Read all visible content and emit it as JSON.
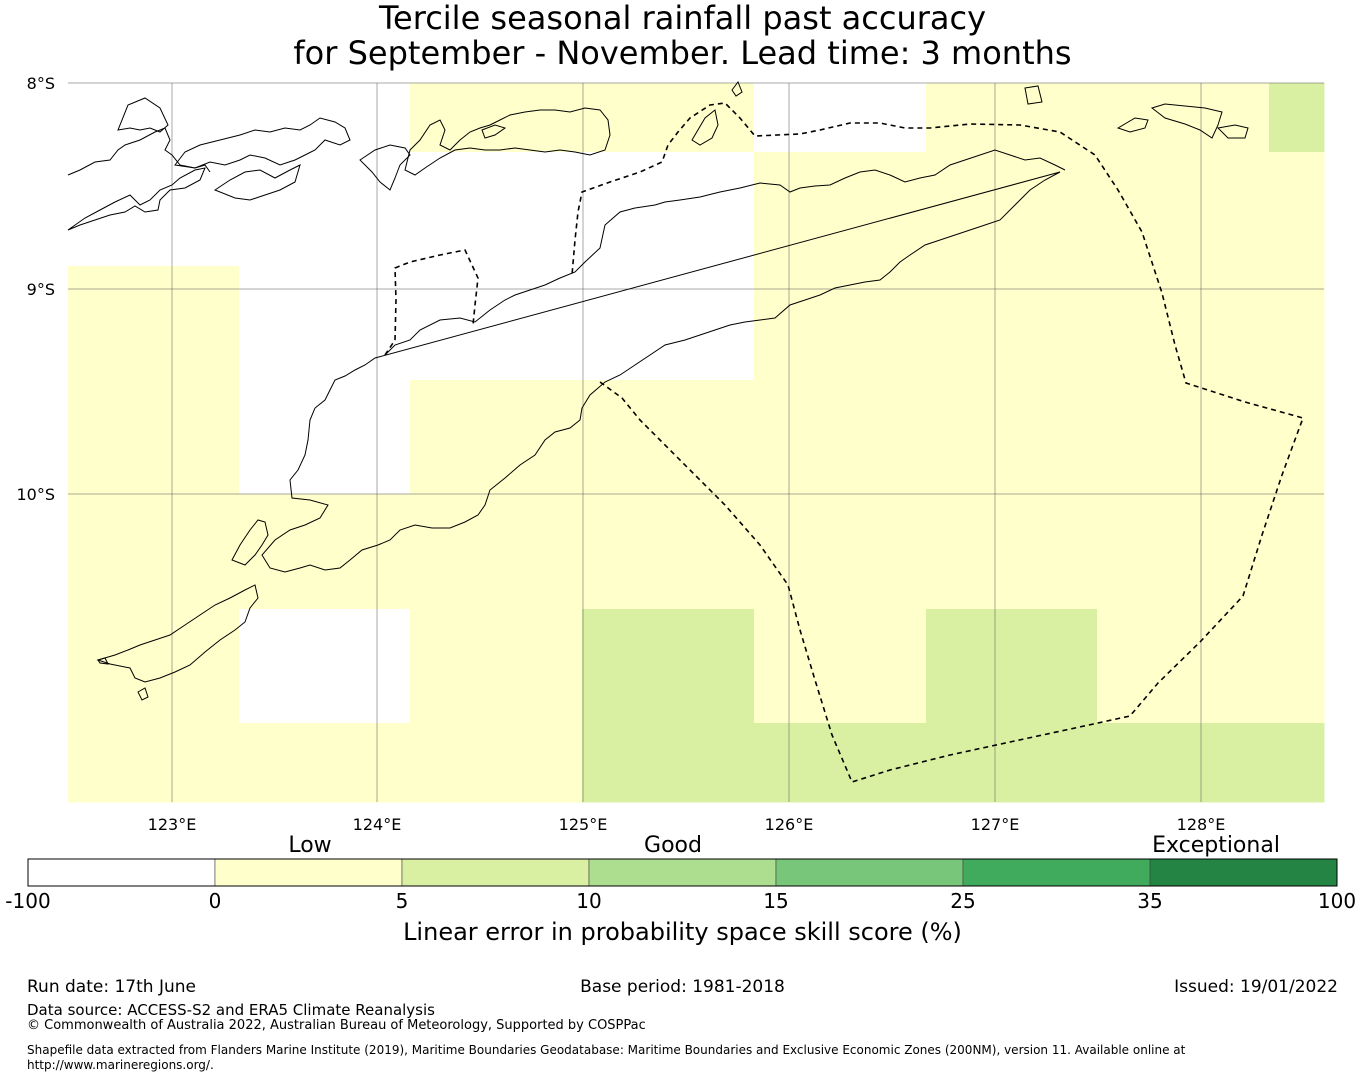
{
  "title": {
    "line1": "Tercile seasonal rainfall past accuracy",
    "line2": "for September - November. Lead time: 3 months"
  },
  "map": {
    "lat_labels": [
      "8°S",
      "9°S",
      "10°S"
    ],
    "lon_labels": [
      "123°E",
      "124°E",
      "125°E",
      "126°E",
      "127°E",
      "128°E"
    ],
    "colors": {
      "white": "#ffffff",
      "low": "#ffffcc",
      "good": "#d9f0a3"
    },
    "grid_cells": [
      {
        "row": 0,
        "col": 0,
        "cat": "white"
      },
      {
        "row": 0,
        "col": 1,
        "cat": "white"
      },
      {
        "row": 0,
        "col": 2,
        "cat": "low"
      },
      {
        "row": 0,
        "col": 3,
        "cat": "low"
      },
      {
        "row": 0,
        "col": 4,
        "cat": "white"
      },
      {
        "row": 0,
        "col": 5,
        "cat": "low"
      },
      {
        "row": 0,
        "col": 6,
        "cat": "low"
      },
      {
        "row": 0,
        "col": 7,
        "cat": "good"
      },
      {
        "row": 1,
        "col": 0,
        "cat": "white"
      },
      {
        "row": 1,
        "col": 1,
        "cat": "white"
      },
      {
        "row": 1,
        "col": 2,
        "cat": "white"
      },
      {
        "row": 1,
        "col": 3,
        "cat": "white"
      },
      {
        "row": 1,
        "col": 4,
        "cat": "low"
      },
      {
        "row": 1,
        "col": 5,
        "cat": "low"
      },
      {
        "row": 1,
        "col": 6,
        "cat": "low"
      },
      {
        "row": 1,
        "col": 7,
        "cat": "low"
      },
      {
        "row": 2,
        "col": 0,
        "cat": "low"
      },
      {
        "row": 2,
        "col": 1,
        "cat": "white"
      },
      {
        "row": 2,
        "col": 2,
        "cat": "white"
      },
      {
        "row": 2,
        "col": 3,
        "cat": "white"
      },
      {
        "row": 2,
        "col": 4,
        "cat": "low"
      },
      {
        "row": 2,
        "col": 5,
        "cat": "low"
      },
      {
        "row": 2,
        "col": 6,
        "cat": "low"
      },
      {
        "row": 2,
        "col": 7,
        "cat": "low"
      },
      {
        "row": 3,
        "col": 0,
        "cat": "low"
      },
      {
        "row": 3,
        "col": 1,
        "cat": "white"
      },
      {
        "row": 3,
        "col": 2,
        "cat": "low"
      },
      {
        "row": 3,
        "col": 3,
        "cat": "low"
      },
      {
        "row": 3,
        "col": 4,
        "cat": "low"
      },
      {
        "row": 3,
        "col": 5,
        "cat": "low"
      },
      {
        "row": 3,
        "col": 6,
        "cat": "low"
      },
      {
        "row": 3,
        "col": 7,
        "cat": "low"
      },
      {
        "row": 4,
        "col": 0,
        "cat": "low"
      },
      {
        "row": 4,
        "col": 1,
        "cat": "low"
      },
      {
        "row": 4,
        "col": 2,
        "cat": "low"
      },
      {
        "row": 4,
        "col": 3,
        "cat": "low"
      },
      {
        "row": 4,
        "col": 4,
        "cat": "low"
      },
      {
        "row": 4,
        "col": 5,
        "cat": "low"
      },
      {
        "row": 4,
        "col": 6,
        "cat": "low"
      },
      {
        "row": 4,
        "col": 7,
        "cat": "low"
      },
      {
        "row": 5,
        "col": 0,
        "cat": "low"
      },
      {
        "row": 5,
        "col": 1,
        "cat": "white"
      },
      {
        "row": 5,
        "col": 2,
        "cat": "low"
      },
      {
        "row": 5,
        "col": 3,
        "cat": "good"
      },
      {
        "row": 5,
        "col": 4,
        "cat": "low"
      },
      {
        "row": 5,
        "col": 5,
        "cat": "good"
      },
      {
        "row": 5,
        "col": 6,
        "cat": "low"
      },
      {
        "row": 5,
        "col": 7,
        "cat": "low"
      },
      {
        "row": 6,
        "col": 0,
        "cat": "low"
      },
      {
        "row": 6,
        "col": 1,
        "cat": "low"
      },
      {
        "row": 6,
        "col": 2,
        "cat": "low"
      },
      {
        "row": 6,
        "col": 3,
        "cat": "good"
      },
      {
        "row": 6,
        "col": 4,
        "cat": "good"
      },
      {
        "row": 6,
        "col": 5,
        "cat": "good"
      },
      {
        "row": 6,
        "col": 6,
        "cat": "good"
      },
      {
        "row": 6,
        "col": 7,
        "cat": "good"
      }
    ]
  },
  "colorbar": {
    "categories": [
      "Low",
      "Good",
      "Exceptional"
    ],
    "ticks": [
      "-100",
      "0",
      "5",
      "10",
      "15",
      "25",
      "35",
      "100"
    ],
    "colors": [
      "#ffffff",
      "#ffffcc",
      "#d9f0a3",
      "#addd8e",
      "#78c679",
      "#41ab5d",
      "#238443"
    ],
    "label": "Linear error in probability space skill score (%)"
  },
  "footer": {
    "run_date": "Run date: 17th June",
    "base_period": "Base period: 1981-2018",
    "issued": "Issued: 19/01/2022",
    "data_source": "Data source: ACCESS-S2 and ERA5 Climate Reanalysis",
    "copyright": "© Commonwealth of Australia 2022, Australian Bureau of Meteorology, Supported by COSPPac",
    "shapefile_line1": "Shapefile data extracted from Flanders Marine Institute (2019), Maritime Boundaries Geodatabase: Maritime Boundaries and Exclusive Economic Zones (200NM), version 11. Available online at",
    "shapefile_line2": "http://www.marineregions.org/."
  }
}
